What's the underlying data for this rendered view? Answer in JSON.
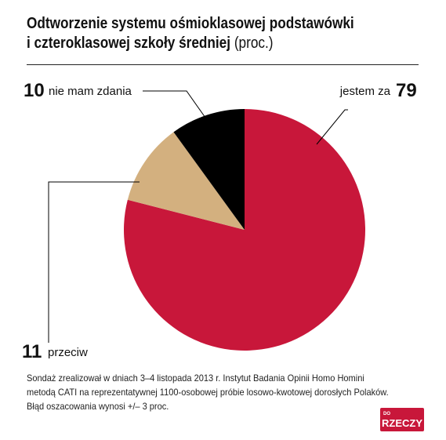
{
  "title": {
    "line1": "Odtworzenie systemu ośmioklasowej podstawówki",
    "line2": "i czteroklasowej szkoły średniej",
    "unit": "(proc.)"
  },
  "chart_data": {
    "type": "pie",
    "title": "Odtworzenie systemu ośmioklasowej podstawówki i czteroklasowej szkoły średniej",
    "unit": "(proc.)",
    "slices": [
      {
        "label": "jestem za",
        "value": 79,
        "value_label": "79",
        "color": "#c8173a"
      },
      {
        "label": "przeciw",
        "value": 11,
        "value_label": "11",
        "color": "#d3b07f"
      },
      {
        "label": "nie mam zdania",
        "value": 10,
        "value_label": "10",
        "color": "#000000"
      }
    ]
  },
  "footnote": {
    "line1": "Sondaż zrealizował w dniach 3–4 listopada 2013 r. Instytut Badania Opinii Homo Homini",
    "line2": "metodą CATI na reprezentatywnej 1100-osobowej próbie losowo-kwotowej dorosłych Polaków.",
    "line3": "Błąd oszacowania wynosi +/– 3 proc."
  },
  "logo": {
    "top_text": "DO",
    "main_text": "RZECZY",
    "color": "#c8173a"
  }
}
